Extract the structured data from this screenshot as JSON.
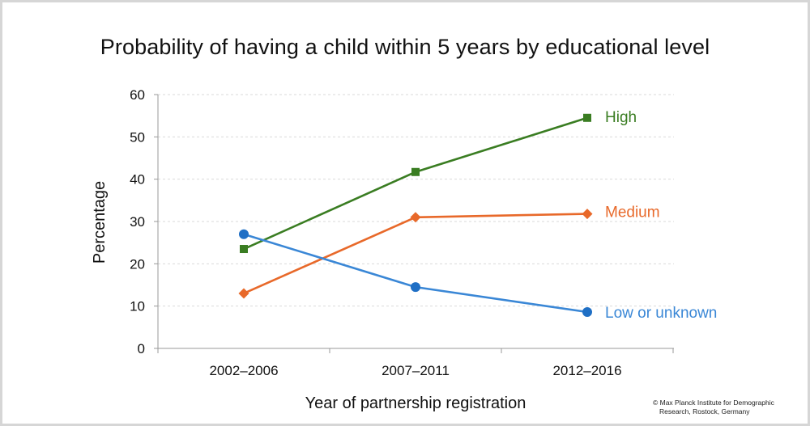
{
  "chart_data": {
    "type": "line",
    "title": "Probability of having a child within 5 years by educational level",
    "xlabel": "Year of partnership registration",
    "ylabel": "Percentage",
    "categories": [
      "2002–2006",
      "2007–2011",
      "2012–2016"
    ],
    "ylim": [
      0,
      60
    ],
    "yticks": [
      "0",
      "10",
      "20",
      "30",
      "40",
      "50",
      "60"
    ],
    "grid": true,
    "legend": "direct labels at line ends",
    "series": [
      {
        "name": "High",
        "color": "#3a7d22",
        "marker": "square",
        "values": [
          23.5,
          41.7,
          54.5
        ]
      },
      {
        "name": "Medium",
        "color": "#e8692a",
        "marker": "diamond",
        "values": [
          13,
          31,
          31.8
        ]
      },
      {
        "name": "Low or unknown",
        "color": "#3a87d6",
        "marker_color": "#1f6fc5",
        "marker": "circle",
        "values": [
          27,
          14.5,
          8.6
        ]
      }
    ]
  },
  "credit": {
    "line1": "© Max Planck Institute for Demographic",
    "line2": "Research, Rostock, Germany"
  }
}
